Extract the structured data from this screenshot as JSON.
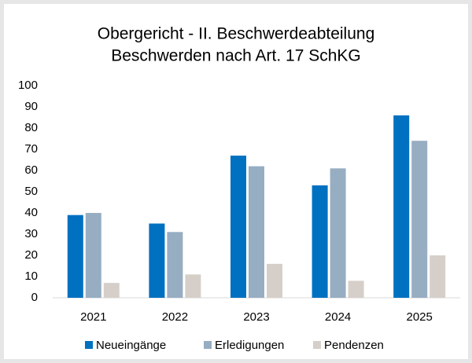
{
  "chart_data": {
    "type": "bar",
    "title": "Obergericht - II. Beschwerdeabteilung",
    "subtitle": "Beschwerden nach Art. 17 SchKG",
    "categories": [
      "2021",
      "2022",
      "2023",
      "2024",
      "2025"
    ],
    "series": [
      {
        "name": "Neueingänge",
        "color": "#0070c0",
        "values": [
          39,
          35,
          67,
          53,
          86
        ]
      },
      {
        "name": "Erledigungen",
        "color": "#97adc2",
        "values": [
          40,
          31,
          62,
          61,
          74
        ]
      },
      {
        "name": "Pendenzen",
        "color": "#d6cfc9",
        "values": [
          7,
          11,
          16,
          8,
          20
        ]
      }
    ],
    "ylim": [
      0,
      100
    ],
    "yticks": [
      0,
      10,
      20,
      30,
      40,
      50,
      60,
      70,
      80,
      90,
      100
    ],
    "grid": false,
    "legend": "bottom"
  }
}
